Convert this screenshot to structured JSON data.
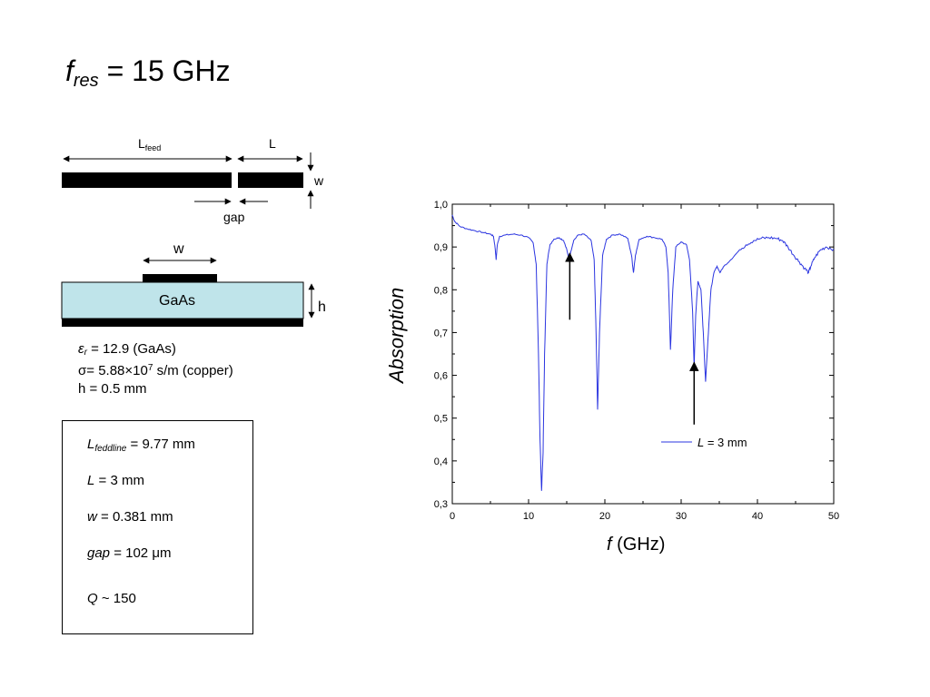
{
  "title": {
    "var": "f",
    "sub": "res",
    "rest": "= 15 GHz"
  },
  "diagram": {
    "lfeed_base": "L",
    "lfeed_sub": "feed",
    "l_label": "L",
    "w_label": "w",
    "gap_label": "gap",
    "w_top_label": "w",
    "substrate_label": "GaAs",
    "h_label": "h"
  },
  "params": {
    "eps_sym": "ε",
    "eps_sub": "r",
    "eps_rest": " = 12.9 (GaAs)",
    "sigma_sym": "σ",
    "sigma_rest": "= 5.88×10",
    "sigma_exp": "7",
    "sigma_unit": " s/m (copper)",
    "h_line": "h = 0.5 mm"
  },
  "box": {
    "lfeed_var": "L",
    "lfeed_sub": "feddline",
    "lfeed_val": " = 9.77 mm",
    "l_var": "L",
    "l_val": " = 3 mm",
    "w_var": "w",
    "w_val": " = 0.381 mm",
    "gap_var": "gap",
    "gap_val": " = 102 μm",
    "q_var": "Q",
    "q_val": " ~ 150"
  },
  "chart_data": {
    "type": "line",
    "ylabel": "Absorption",
    "xlabel_var": "f",
    "xlabel_unit": " (GHz)",
    "xlim": [
      0,
      50
    ],
    "ylim": [
      0.3,
      1.0
    ],
    "xticks": [
      "0",
      "10",
      "20",
      "30",
      "40",
      "50"
    ],
    "yticks": [
      "0,3",
      "0,4",
      "0,5",
      "0,6",
      "0,7",
      "0,8",
      "0,9",
      "1,0"
    ],
    "legend": {
      "var": "L",
      "rest": " = 3 mm",
      "position": "lower-right"
    },
    "line_color": "#2b35e0",
    "series": [
      {
        "name": "L = 3 mm",
        "points": [
          [
            0,
            0.975
          ],
          [
            0.3,
            0.96
          ],
          [
            1,
            0.948
          ],
          [
            2,
            0.942
          ],
          [
            3,
            0.938
          ],
          [
            4,
            0.934
          ],
          [
            5,
            0.93
          ],
          [
            5.4,
            0.925
          ],
          [
            5.6,
            0.9
          ],
          [
            5.75,
            0.87
          ],
          [
            5.9,
            0.905
          ],
          [
            6.2,
            0.925
          ],
          [
            7,
            0.928
          ],
          [
            8,
            0.93
          ],
          [
            9,
            0.928
          ],
          [
            10,
            0.922
          ],
          [
            10.6,
            0.91
          ],
          [
            11,
            0.86
          ],
          [
            11.3,
            0.65
          ],
          [
            11.5,
            0.45
          ],
          [
            11.7,
            0.33
          ],
          [
            11.9,
            0.42
          ],
          [
            12.1,
            0.65
          ],
          [
            12.4,
            0.86
          ],
          [
            12.8,
            0.905
          ],
          [
            13.3,
            0.918
          ],
          [
            14,
            0.922
          ],
          [
            14.6,
            0.915
          ],
          [
            15,
            0.895
          ],
          [
            15.3,
            0.87
          ],
          [
            15.55,
            0.89
          ],
          [
            15.9,
            0.915
          ],
          [
            16.5,
            0.928
          ],
          [
            17.3,
            0.93
          ],
          [
            18.2,
            0.915
          ],
          [
            18.6,
            0.87
          ],
          [
            18.85,
            0.7
          ],
          [
            19.05,
            0.52
          ],
          [
            19.3,
            0.7
          ],
          [
            19.7,
            0.88
          ],
          [
            20.2,
            0.918
          ],
          [
            21,
            0.928
          ],
          [
            22,
            0.93
          ],
          [
            23,
            0.92
          ],
          [
            23.5,
            0.88
          ],
          [
            23.75,
            0.84
          ],
          [
            24,
            0.88
          ],
          [
            24.5,
            0.918
          ],
          [
            25.5,
            0.925
          ],
          [
            26.5,
            0.922
          ],
          [
            27.5,
            0.918
          ],
          [
            28,
            0.9
          ],
          [
            28.3,
            0.84
          ],
          [
            28.6,
            0.66
          ],
          [
            28.9,
            0.8
          ],
          [
            29.3,
            0.9
          ],
          [
            30,
            0.912
          ],
          [
            30.7,
            0.905
          ],
          [
            31.1,
            0.87
          ],
          [
            31.5,
            0.75
          ],
          [
            31.7,
            0.62
          ],
          [
            31.9,
            0.74
          ],
          [
            32.2,
            0.82
          ],
          [
            32.6,
            0.8
          ],
          [
            32.9,
            0.7
          ],
          [
            33.2,
            0.585
          ],
          [
            33.5,
            0.68
          ],
          [
            33.9,
            0.8
          ],
          [
            34.3,
            0.84
          ],
          [
            34.7,
            0.855
          ],
          [
            35.1,
            0.84
          ],
          [
            35.6,
            0.855
          ],
          [
            36.5,
            0.87
          ],
          [
            37.5,
            0.89
          ],
          [
            38.5,
            0.905
          ],
          [
            39.5,
            0.915
          ],
          [
            40.5,
            0.92
          ],
          [
            41.5,
            0.922
          ],
          [
            42.5,
            0.92
          ],
          [
            43.3,
            0.915
          ],
          [
            44,
            0.9
          ],
          [
            44.8,
            0.88
          ],
          [
            45.5,
            0.865
          ],
          [
            46.2,
            0.85
          ],
          [
            46.7,
            0.84
          ],
          [
            47,
            0.855
          ],
          [
            47.5,
            0.875
          ],
          [
            48.2,
            0.892
          ],
          [
            49,
            0.9
          ],
          [
            50,
            0.895
          ]
        ]
      }
    ],
    "annotations": [
      {
        "x": 15.4,
        "y_from": 0.73,
        "y_to": 0.885
      },
      {
        "x": 31.7,
        "y_from": 0.485,
        "y_to": 0.63
      }
    ]
  }
}
